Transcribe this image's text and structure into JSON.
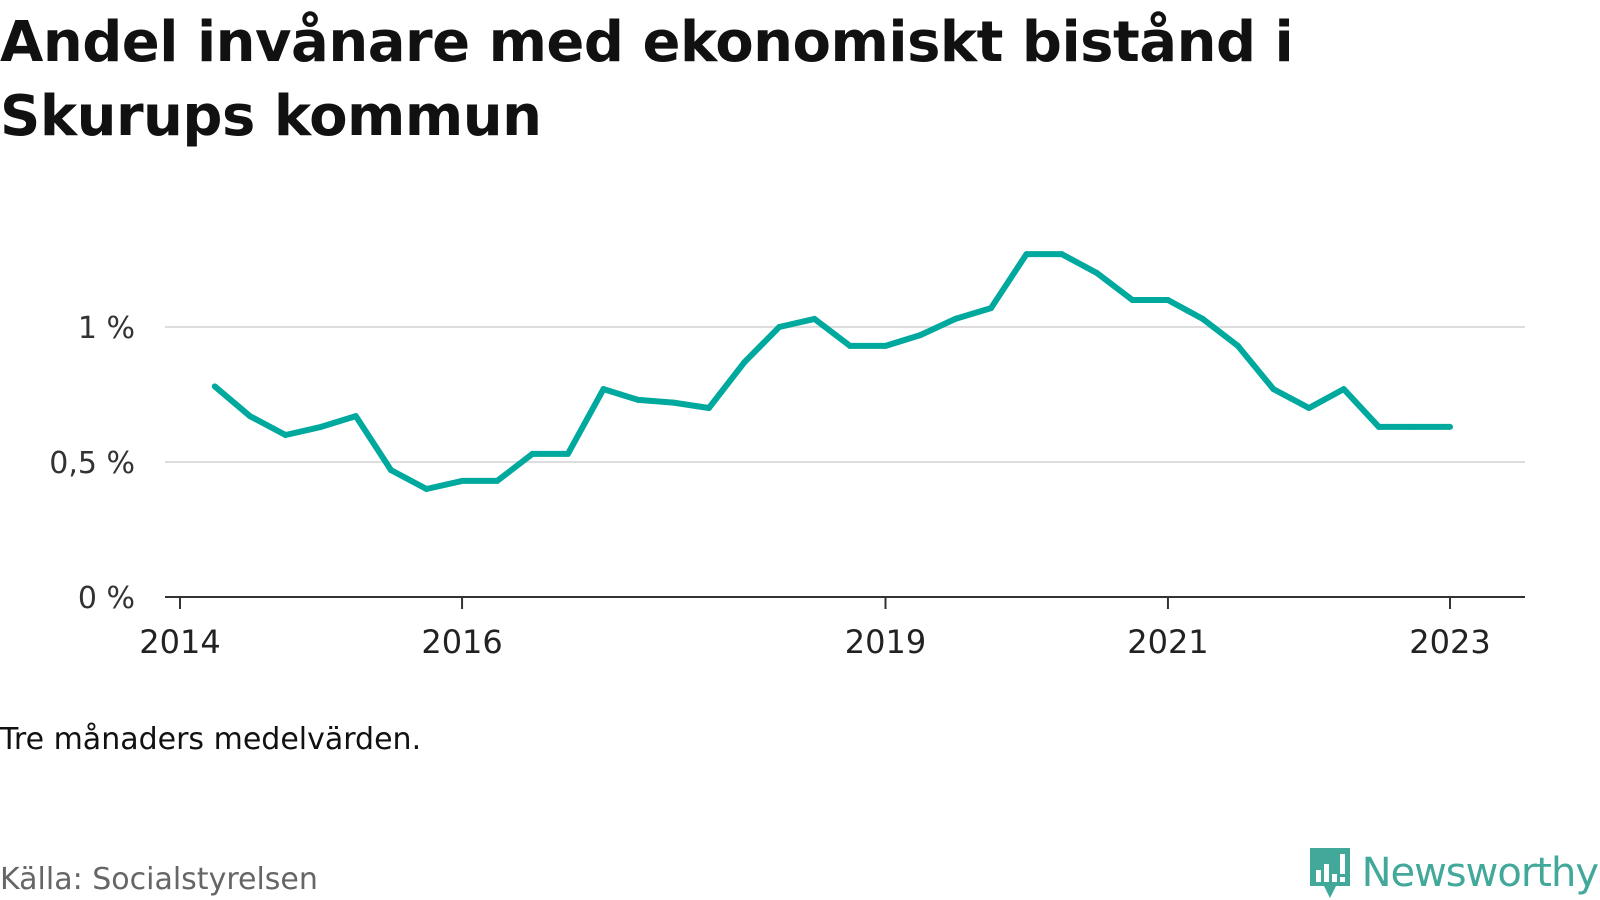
{
  "title": "Andel invånare med ekonomiskt bistånd i Skurups kommun",
  "note": "Tre månaders medelvärden.",
  "source": "Källa: Socialstyrelsen",
  "brand": {
    "name": "Newsworthy",
    "color": "#41a89a",
    "logo_icon": "newsworthy-chart-bubble-icon"
  },
  "chart_data": {
    "type": "line",
    "title": "Andel invånare med ekonomiskt bistånd i Skurups kommun",
    "xlabel": "",
    "ylabel": "",
    "x_ticks": [
      "2014",
      "2016",
      "2019",
      "2021",
      "2023"
    ],
    "y_ticks": [
      "0 %",
      "0,5 %",
      "1 %"
    ],
    "ylim": [
      0,
      1.3
    ],
    "grid": "horizontal",
    "line_color": "#00a99d",
    "series": [
      {
        "x": [
          "2014-04",
          "2014-07",
          "2014-10",
          "2015-01",
          "2015-04",
          "2015-07",
          "2015-10",
          "2016-01",
          "2016-04",
          "2016-07",
          "2016-10",
          "2017-01",
          "2017-04",
          "2017-07",
          "2017-10",
          "2018-01",
          "2018-04",
          "2018-07",
          "2018-10",
          "2019-01",
          "2019-04",
          "2019-07",
          "2019-10",
          "2020-01",
          "2020-04",
          "2020-07",
          "2020-10",
          "2021-01",
          "2021-04",
          "2021-07",
          "2021-10",
          "2022-01",
          "2022-04",
          "2022-07",
          "2022-10",
          "2023-01"
        ],
        "values": [
          0.78,
          0.67,
          0.6,
          0.63,
          0.67,
          0.47,
          0.4,
          0.43,
          0.43,
          0.53,
          0.53,
          0.77,
          0.73,
          0.72,
          0.7,
          0.87,
          1.0,
          1.03,
          0.93,
          0.93,
          0.97,
          1.03,
          1.07,
          1.27,
          1.27,
          1.2,
          1.1,
          1.1,
          1.03,
          0.93,
          0.77,
          0.7,
          0.77,
          0.63,
          0.63,
          0.63
        ]
      }
    ]
  }
}
